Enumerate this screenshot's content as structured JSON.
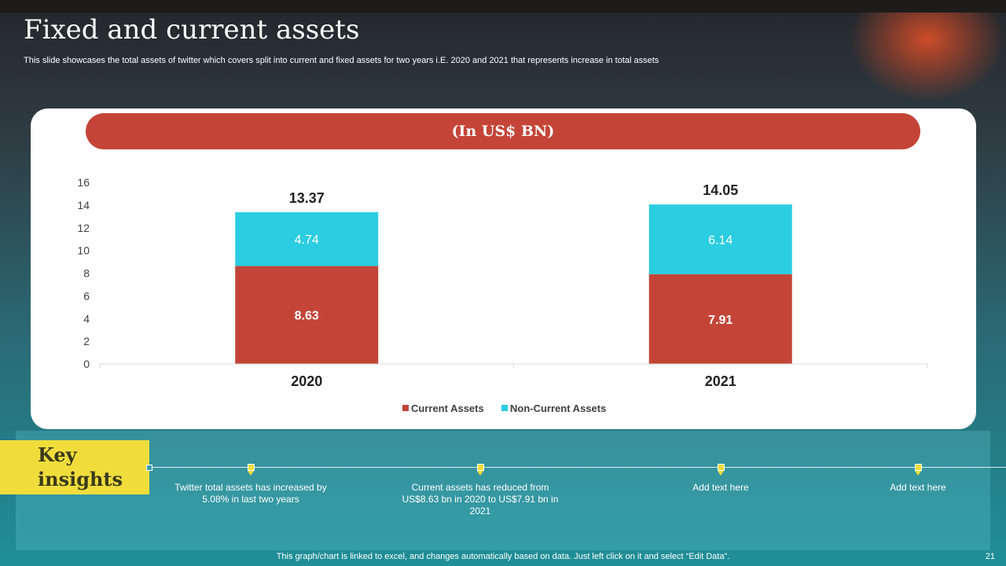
{
  "slide": {
    "title": "Fixed and current assets",
    "subtitle": "This slide showcases the total assets of twitter which covers split into current and fixed  assets for two years i.E. 2020 and 2021 that represents increase in total assets",
    "unit_label": "(In US$ BN)",
    "footer": "This graph/chart is linked to excel,  and changes automatically based on data. Just left click on it and select “Edit Data”.",
    "page_number": "21"
  },
  "insights": {
    "heading": "Key insights",
    "items": [
      "Twitter total assets has increased by 5.08% in last two years",
      "Current assets has reduced from US$8.63 bn in 2020 to US$7.91 bn in 2021",
      "Add text here",
      "Add text here"
    ]
  },
  "colors": {
    "current": "#c44538",
    "non_current": "#2bcde0",
    "accent": "#f0dd3c"
  },
  "chart_data": {
    "type": "bar",
    "stacked": true,
    "categories": [
      "2020",
      "2021"
    ],
    "series": [
      {
        "name": "Current Assets",
        "values": [
          8.63,
          7.91
        ],
        "color": "#c44538"
      },
      {
        "name": "Non-Current Assets",
        "values": [
          4.74,
          6.14
        ],
        "color": "#2bcde0"
      }
    ],
    "totals": [
      13.37,
      14.05
    ],
    "ylim": [
      0,
      16
    ],
    "yticks": [
      0,
      2,
      4,
      6,
      8,
      10,
      12,
      14,
      16
    ],
    "title": "",
    "xlabel": "",
    "ylabel": "",
    "grid": false,
    "legend_position": "bottom"
  }
}
